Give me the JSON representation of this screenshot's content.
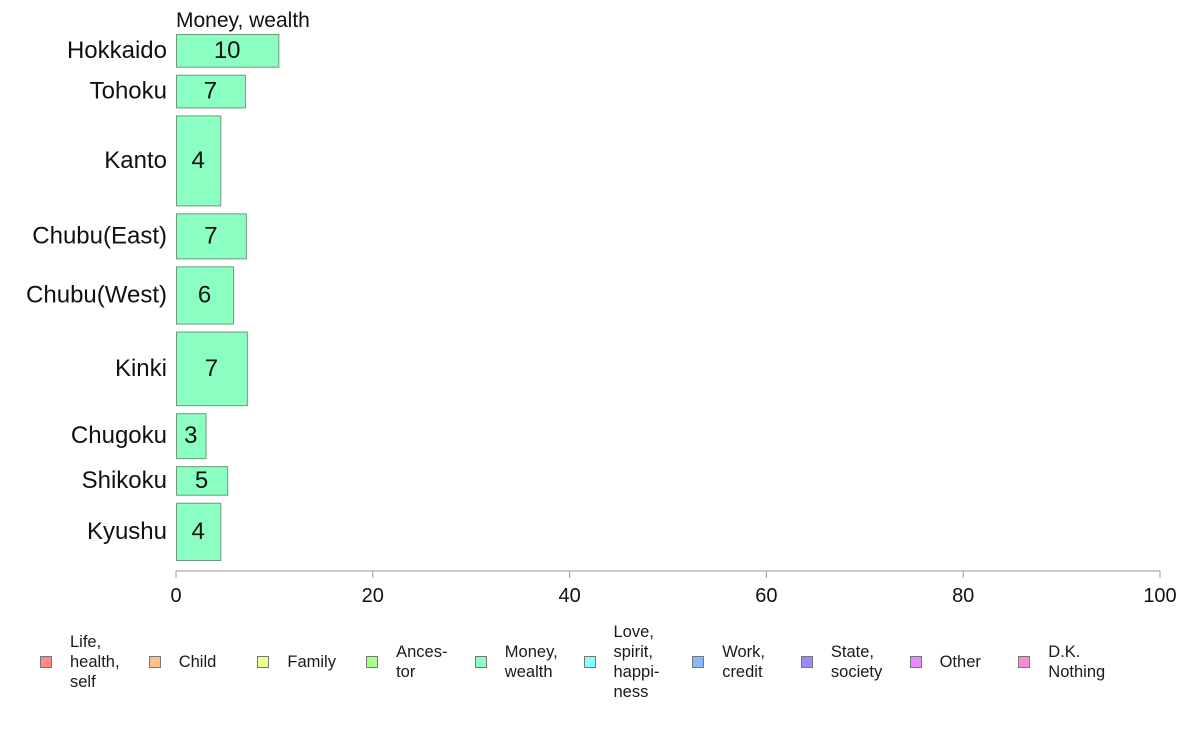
{
  "chart_data": {
    "type": "bar",
    "orientation": "horizontal",
    "title": "Money, wealth",
    "categories": [
      "Hokkaido",
      "Tohoku",
      "Kanto",
      "Chubu(East)",
      "Chubu(West)",
      "Kinki",
      "Chugoku",
      "Shikoku",
      "Kyushu"
    ],
    "series": [
      {
        "name": "Money, wealth",
        "values": [
          10.4,
          7,
          4.5,
          7.1,
          5.8,
          7.2,
          3,
          5.2,
          4.5
        ],
        "value_labels": [
          "10",
          "7",
          "4",
          "7",
          "6",
          "7",
          "3",
          "5",
          "4"
        ],
        "color": "#8affc1"
      }
    ],
    "bar_widths": [
      0.8,
      0.8,
      2.2,
      1.1,
      1.4,
      1.8,
      1.1,
      0.7,
      1.4
    ],
    "xlim": [
      0,
      100
    ],
    "xticks": [
      "0",
      "20",
      "40",
      "60",
      "80",
      "100"
    ],
    "xlabel": "",
    "ylabel": "",
    "grid": false,
    "legend_position": "bottom"
  },
  "legend": {
    "items": [
      {
        "label": "Life,\nhealth,\nself",
        "color": "#ff8a8a"
      },
      {
        "label": "Child",
        "color": "#ffc18a"
      },
      {
        "label": "Family",
        "color": "#f0ff8a"
      },
      {
        "label": "Ances-\ntor",
        "color": "#a8ff8a"
      },
      {
        "label": "Money,\nwealth",
        "color": "#8affc1"
      },
      {
        "label": "Love,\nspirit,\nhappi-\nness",
        "color": "#8affff"
      },
      {
        "label": "Work,\ncredit",
        "color": "#8ab8ff"
      },
      {
        "label": "State,\nsociety",
        "color": "#9a8aff"
      },
      {
        "label": "Other",
        "color": "#e88aff"
      },
      {
        "label": "D.K.\nNothing",
        "color": "#ff8ad4"
      }
    ]
  },
  "colors": {
    "axis": "#9a9a9a",
    "bar_border": "#6f9a80",
    "text": "#111111"
  }
}
